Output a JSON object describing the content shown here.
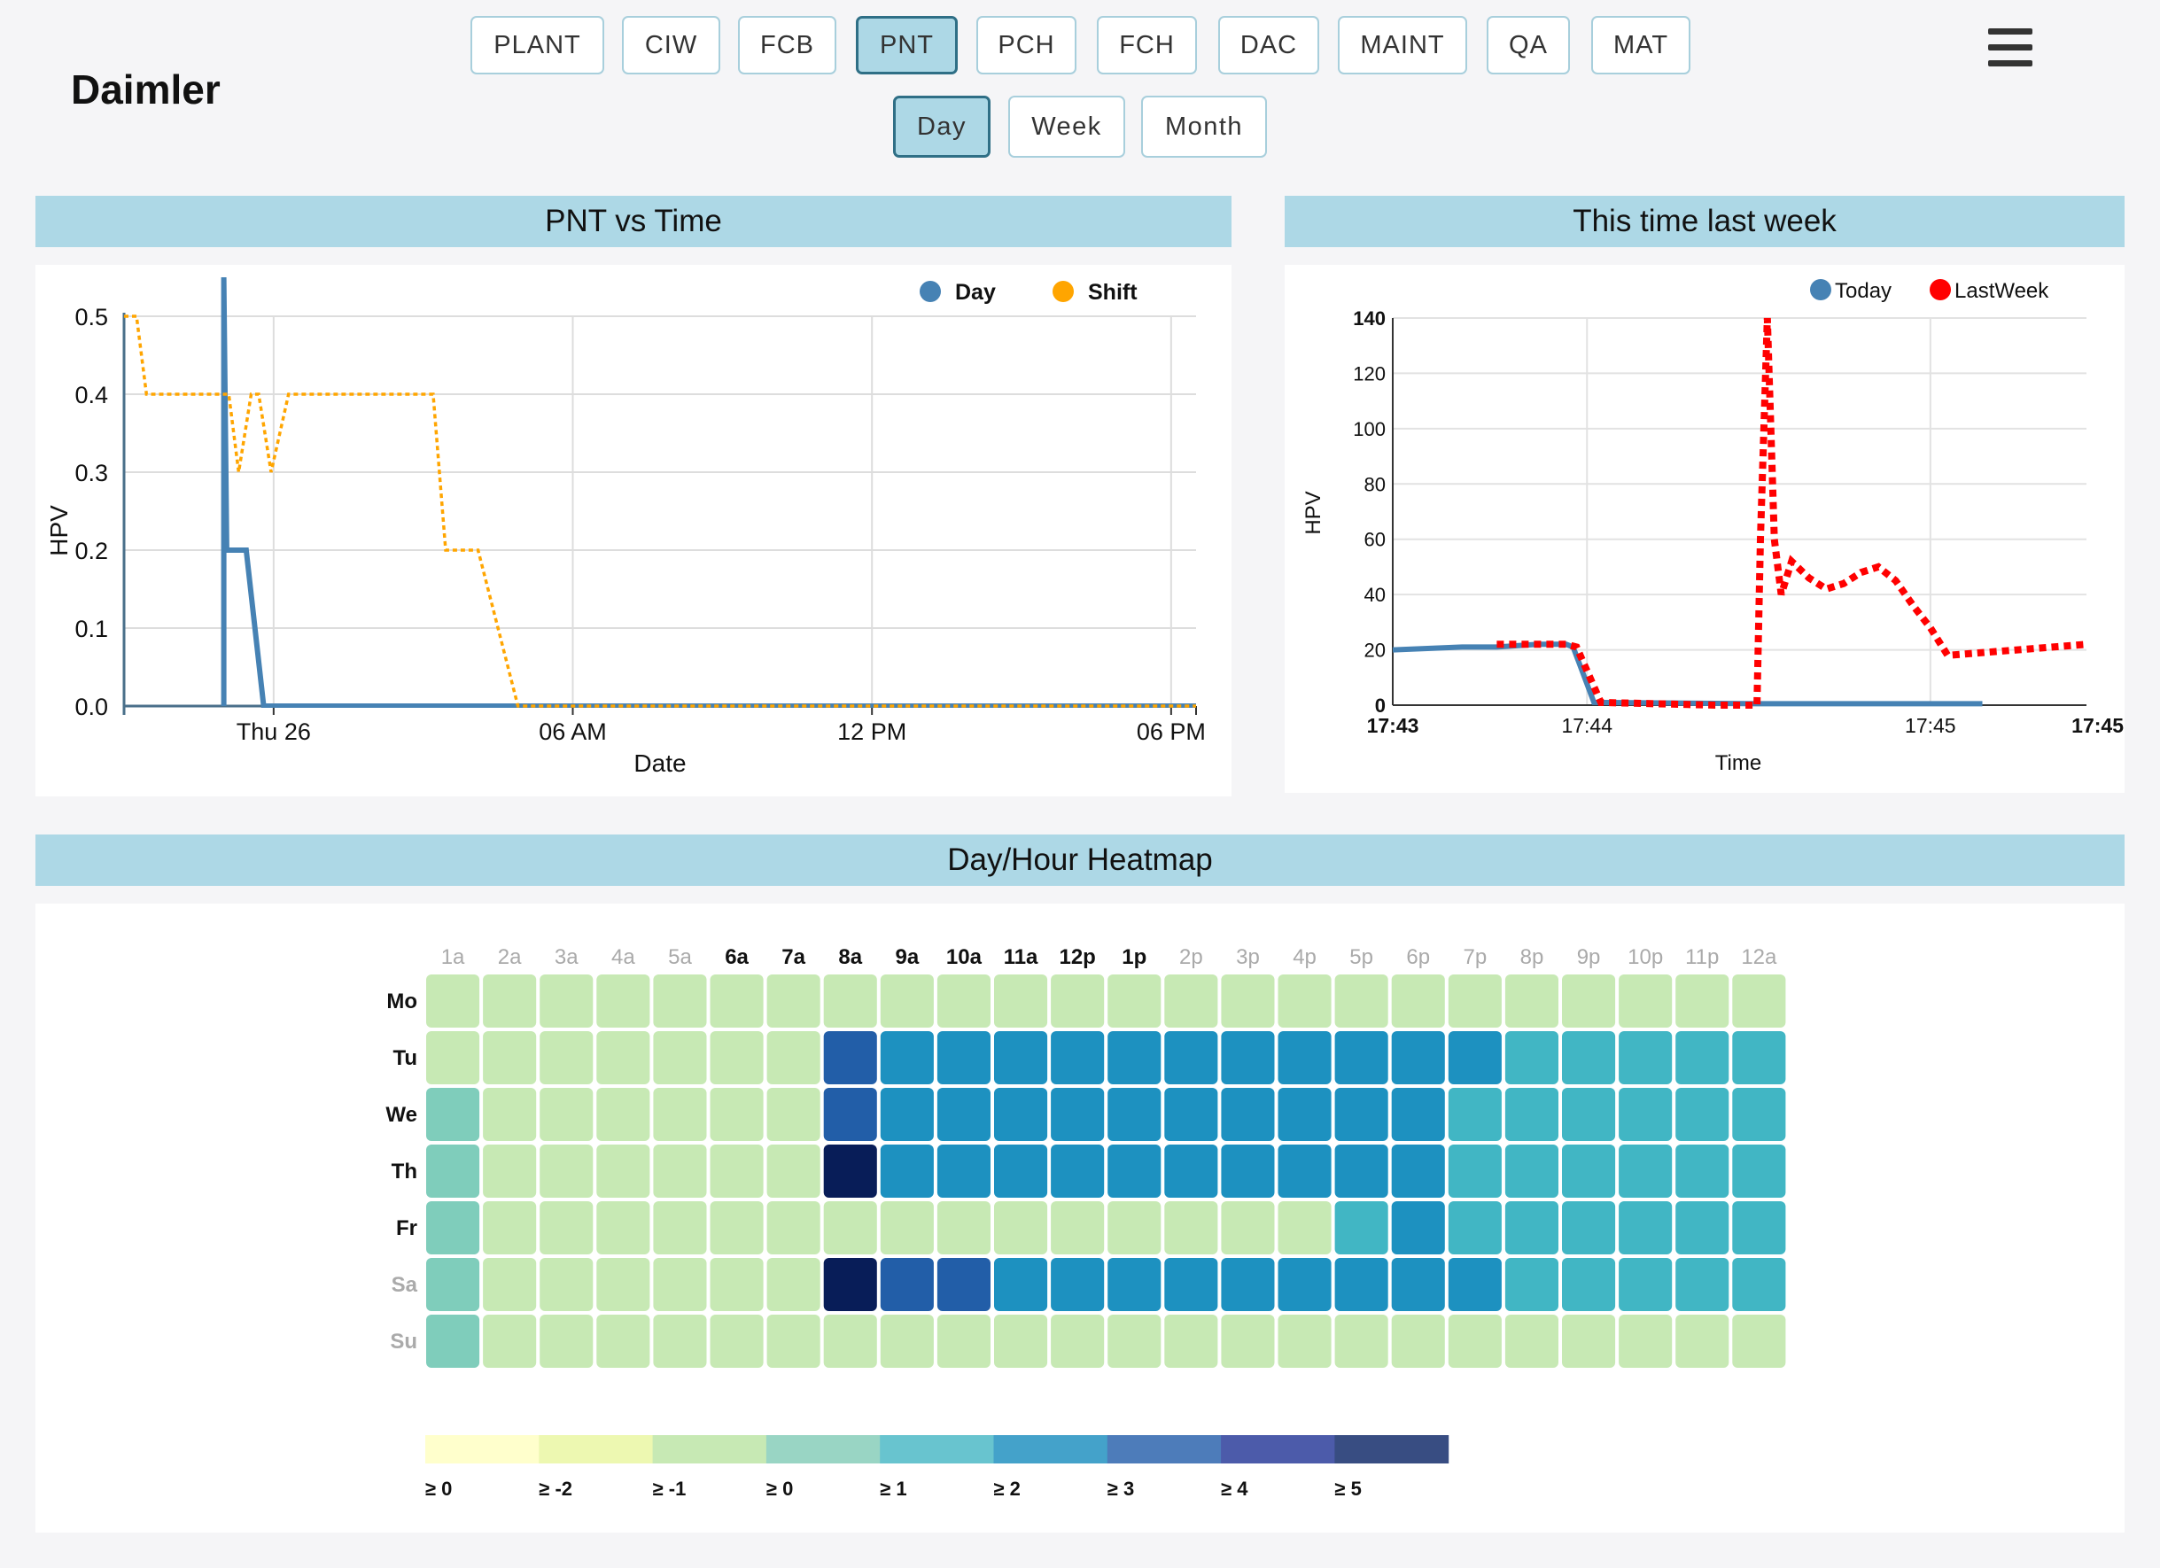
{
  "brand": "Daimler",
  "nav": {
    "tabs": [
      "PLANT",
      "CIW",
      "FCB",
      "PNT",
      "PCH",
      "FCH",
      "DAC",
      "MAINT",
      "QA",
      "MAT"
    ],
    "active_tab": "PNT",
    "ranges": [
      "Day",
      "Week",
      "Month"
    ],
    "active_range": "Day"
  },
  "colors": {
    "accent": "#add8e6",
    "day": "#4682b4",
    "shift": "#ffa500",
    "today": "#4682b4",
    "lastweek": "#ff0000"
  },
  "pnt_chart": {
    "title": "PNT vs Time",
    "chart_data": {
      "type": "line",
      "xlabel": "Date",
      "ylabel": "HPV",
      "ylim": [
        0,
        0.5
      ],
      "y_ticks": [
        "0.0",
        "0.1",
        "0.2",
        "0.3",
        "0.4",
        "0.5"
      ],
      "x_ticks": [
        "Thu 26",
        "06 AM",
        "12 PM",
        "06 PM"
      ],
      "legend": [
        "Day",
        "Shift"
      ],
      "series": [
        {
          "name": "Day",
          "x_hours": [
            2,
            2,
            2.06,
            2.3,
            2.45,
            2.8,
            21.5
          ],
          "values": [
            0.0,
            0.55,
            0.2,
            0.2,
            0.2,
            0.0,
            0.0
          ]
        },
        {
          "name": "Shift",
          "x_hours": [
            0,
            0.25,
            0.45,
            2.1,
            2.3,
            2.55,
            2.7,
            2.95,
            3.3,
            3.5,
            6.2,
            6.45,
            6.85,
            7.1,
            7.9,
            21.5
          ],
          "values": [
            0.5,
            0.5,
            0.4,
            0.4,
            0.3,
            0.4,
            0.4,
            0.3,
            0.4,
            0.4,
            0.4,
            0.2,
            0.2,
            0.2,
            0.0,
            0.0
          ]
        }
      ]
    }
  },
  "lastweek_chart": {
    "title": "This time last week",
    "chart_data": {
      "type": "line",
      "xlabel": "Time",
      "ylabel": "HPV",
      "ylim": [
        0,
        140
      ],
      "y_ticks": [
        "0",
        "20",
        "40",
        "60",
        "80",
        "100",
        "120",
        "140"
      ],
      "x_ticks": [
        "17:43",
        "17:44",
        "17:45",
        "17:45"
      ],
      "legend": [
        "Today",
        "LastWeek"
      ],
      "series": [
        {
          "name": "Today",
          "x_min": [
            0,
            0.1,
            0.2,
            0.3,
            0.42,
            0.45,
            0.5,
            0.52,
            0.58,
            1.05,
            1.7
          ],
          "values": [
            20,
            20.5,
            21,
            21,
            22,
            22,
            22,
            21,
            1,
            0.5,
            0.5
          ]
        },
        {
          "name": "LastWeek",
          "x_min": [
            0.3,
            0.5,
            0.53,
            0.6,
            0.93,
            1.05,
            1.06,
            1.08,
            1.1,
            1.12,
            1.15,
            1.2,
            1.25,
            1.3,
            1.35,
            1.4,
            1.45,
            1.5,
            1.55,
            1.6,
            1.8,
            2.0
          ],
          "values": [
            22,
            22,
            21,
            1,
            0,
            0,
            60,
            140,
            60,
            40,
            52,
            46,
            42,
            44,
            48,
            50,
            45,
            36,
            28,
            18,
            20,
            22
          ]
        }
      ]
    }
  },
  "heatmap": {
    "title": "Day/Hour Heatmap",
    "chart_data": {
      "type": "heatmap",
      "hours": [
        "1a",
        "2a",
        "3a",
        "4a",
        "5a",
        "6a",
        "7a",
        "8a",
        "9a",
        "10a",
        "11a",
        "12p",
        "1p",
        "2p",
        "3p",
        "4p",
        "5p",
        "6p",
        "7p",
        "8p",
        "9p",
        "10p",
        "11p",
        "12a"
      ],
      "days": [
        "Mo",
        "Tu",
        "We",
        "Th",
        "Fr",
        "Sa",
        "Su"
      ],
      "palette": [
        "#ffffd9",
        "#edf8b1",
        "#c7e9b4",
        "#7fcdbb",
        "#41b6c4",
        "#1d91c0",
        "#225ea8",
        "#0c2c84",
        "#081d58"
      ],
      "values": [
        [
          2,
          2,
          2,
          2,
          2,
          2,
          2,
          2,
          2,
          2,
          2,
          2,
          2,
          2,
          2,
          2,
          2,
          2,
          2,
          2,
          2,
          2,
          2,
          2
        ],
        [
          2,
          2,
          2,
          2,
          2,
          2,
          2,
          6,
          5,
          5,
          5,
          5,
          5,
          5,
          5,
          5,
          5,
          5,
          5,
          4,
          4,
          4,
          4,
          4
        ],
        [
          3,
          2,
          2,
          2,
          2,
          2,
          2,
          6,
          5,
          5,
          5,
          5,
          5,
          5,
          5,
          5,
          5,
          5,
          4,
          4,
          4,
          4,
          4,
          4
        ],
        [
          3,
          2,
          2,
          2,
          2,
          2,
          2,
          8,
          5,
          5,
          5,
          5,
          5,
          5,
          5,
          5,
          5,
          5,
          4,
          4,
          4,
          4,
          4,
          4
        ],
        [
          3,
          2,
          2,
          2,
          2,
          2,
          2,
          2,
          2,
          2,
          2,
          2,
          2,
          2,
          2,
          2,
          4,
          5,
          4,
          4,
          4,
          4,
          4,
          4
        ],
        [
          3,
          2,
          2,
          2,
          2,
          2,
          2,
          8,
          6,
          6,
          5,
          5,
          5,
          5,
          5,
          5,
          5,
          5,
          5,
          4,
          4,
          4,
          4,
          4
        ],
        [
          3,
          2,
          2,
          2,
          2,
          2,
          2,
          2,
          2,
          2,
          2,
          2,
          2,
          2,
          2,
          2,
          2,
          2,
          2,
          2,
          2,
          2,
          2,
          2
        ]
      ],
      "legend": {
        "colors": [
          "#ffffcc",
          "#edf8b1",
          "#c7e9b4",
          "#99d5c4",
          "#68c4cf",
          "#44a2ca",
          "#4d7cba",
          "#4c5baa",
          "#384d82"
        ],
        "labels": [
          "≥ 0",
          "≥ -2",
          "≥ -1",
          "≥ 0",
          "≥ 1",
          "≥ 2",
          "≥ 3",
          "≥ 4",
          "≥ 5"
        ]
      }
    }
  }
}
